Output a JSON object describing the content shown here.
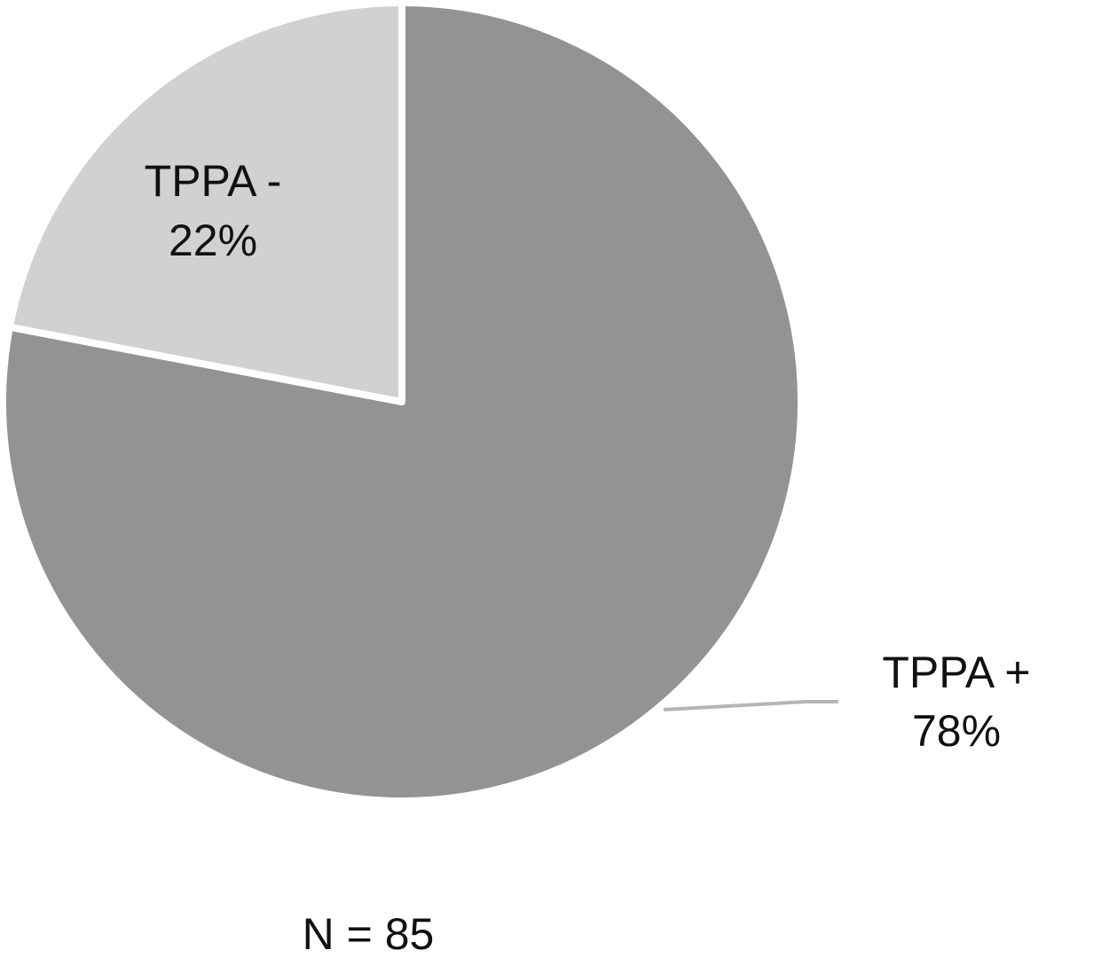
{
  "chart_data": {
    "type": "pie",
    "categories": [
      "TPPA +",
      "TPPA -"
    ],
    "values": [
      78,
      22
    ],
    "value_labels": [
      "78%",
      "22%"
    ],
    "colors": [
      "#939393",
      "#d2d1d2"
    ],
    "annotation": "N = 85"
  }
}
